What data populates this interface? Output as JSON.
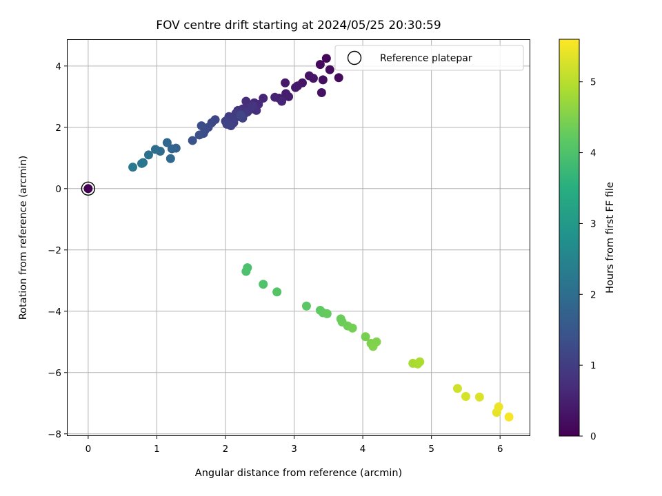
{
  "chart_data": {
    "type": "scatter",
    "title": "FOV centre drift starting at 2024/05/25 20:30:59",
    "xlabel": "Angular distance from reference (arcmin)",
    "ylabel": "Rotation from reference (arcmin)",
    "xlim": [
      -0.3,
      6.43
    ],
    "ylim": [
      -8.05,
      4.85
    ],
    "xticks": [
      0,
      1,
      2,
      3,
      4,
      5,
      6
    ],
    "yticks": [
      -8,
      -6,
      -4,
      -2,
      0,
      2,
      4
    ],
    "xtick_labels": [
      "0",
      "1",
      "2",
      "3",
      "4",
      "5",
      "6"
    ],
    "ytick_labels": [
      "−8",
      "−6",
      "−4",
      "−2",
      "0",
      "2",
      "4"
    ],
    "grid": true,
    "legend_position": "top-right",
    "colormap": "viridis",
    "colorbar": {
      "label": "Hours from first FF file",
      "range": [
        0,
        5.6
      ],
      "ticks": [
        0,
        1,
        2,
        3,
        4,
        5
      ],
      "tick_labels": [
        "0",
        "1",
        "2",
        "3",
        "4",
        "5"
      ]
    },
    "series": [
      {
        "name": "Reference platepar",
        "marker": "hollow-circle",
        "points": [
          [
            0,
            0
          ]
        ]
      },
      {
        "name": "",
        "marker": "filled-circle",
        "points": [
          [
            0,
            0,
            0.0
          ],
          [
            3.47,
            4.25,
            0.08
          ],
          [
            3.38,
            4.05,
            0.12
          ],
          [
            3.52,
            3.88,
            0.16
          ],
          [
            3.65,
            3.62,
            0.18
          ],
          [
            3.42,
            3.55,
            0.22
          ],
          [
            3.4,
            3.13,
            0.25
          ],
          [
            3.22,
            3.68,
            0.28
          ],
          [
            3.28,
            3.6,
            0.3
          ],
          [
            3.12,
            3.45,
            0.33
          ],
          [
            3.05,
            3.35,
            0.36
          ],
          [
            2.87,
            3.45,
            0.38
          ],
          [
            3.02,
            3.3,
            0.4
          ],
          [
            2.88,
            3.1,
            0.43
          ],
          [
            2.92,
            3.0,
            0.46
          ],
          [
            2.78,
            2.95,
            0.5
          ],
          [
            2.72,
            2.98,
            0.55
          ],
          [
            2.82,
            2.85,
            0.58
          ],
          [
            2.55,
            2.95,
            0.6
          ],
          [
            2.42,
            2.8,
            0.63
          ],
          [
            2.48,
            2.75,
            0.66
          ],
          [
            2.38,
            2.6,
            0.7
          ],
          [
            2.3,
            2.85,
            0.72
          ],
          [
            2.45,
            2.55,
            0.75
          ],
          [
            2.35,
            2.65,
            0.78
          ],
          [
            2.25,
            2.6,
            0.8
          ],
          [
            2.4,
            2.7,
            0.83
          ],
          [
            2.32,
            2.5,
            0.86
          ],
          [
            2.18,
            2.55,
            0.88
          ],
          [
            2.2,
            2.35,
            0.9
          ],
          [
            2.28,
            2.45,
            0.93
          ],
          [
            2.15,
            2.45,
            0.95
          ],
          [
            2.1,
            2.25,
            0.98
          ],
          [
            2.05,
            2.35,
            1.0
          ],
          [
            2.12,
            2.15,
            1.03
          ],
          [
            2.0,
            2.2,
            1.05
          ],
          [
            2.25,
            2.3,
            1.08
          ],
          [
            2.08,
            2.05,
            1.1
          ],
          [
            2.02,
            2.1,
            1.12
          ],
          [
            2.22,
            2.4,
            1.15
          ],
          [
            1.85,
            2.25,
            1.18
          ],
          [
            1.8,
            2.15,
            1.2
          ],
          [
            1.75,
            2.0,
            1.23
          ],
          [
            1.7,
            1.9,
            1.26
          ],
          [
            1.65,
            2.05,
            1.3
          ],
          [
            1.68,
            1.8,
            1.33
          ],
          [
            1.62,
            1.75,
            1.36
          ],
          [
            1.52,
            1.57,
            1.4
          ],
          [
            1.28,
            1.32,
            1.75
          ],
          [
            1.22,
            1.3,
            1.8
          ],
          [
            1.15,
            1.5,
            1.85
          ],
          [
            1.2,
            0.98,
            1.9
          ],
          [
            1.05,
            1.22,
            1.95
          ],
          [
            0.98,
            1.28,
            2.0
          ],
          [
            0.88,
            1.1,
            2.05
          ],
          [
            0.8,
            0.85,
            2.15
          ],
          [
            0.78,
            0.82,
            2.2
          ],
          [
            0.65,
            0.7,
            2.25
          ],
          [
            2.32,
            -2.58,
            3.95
          ],
          [
            2.3,
            -2.7,
            3.98
          ],
          [
            2.55,
            -3.12,
            4.02
          ],
          [
            2.75,
            -3.37,
            4.08
          ],
          [
            3.18,
            -3.83,
            4.15
          ],
          [
            3.38,
            -3.97,
            4.2
          ],
          [
            3.42,
            -4.05,
            4.22
          ],
          [
            3.48,
            -4.08,
            4.25
          ],
          [
            3.68,
            -4.25,
            4.3
          ],
          [
            3.7,
            -4.35,
            4.32
          ],
          [
            3.78,
            -4.48,
            4.35
          ],
          [
            3.85,
            -4.55,
            4.38
          ],
          [
            4.04,
            -4.83,
            4.42
          ],
          [
            4.12,
            -5.05,
            4.48
          ],
          [
            4.2,
            -5.0,
            4.5
          ],
          [
            4.15,
            -5.15,
            4.52
          ],
          [
            4.73,
            -5.7,
            4.85
          ],
          [
            4.8,
            -5.72,
            4.88
          ],
          [
            4.83,
            -5.65,
            4.9
          ],
          [
            5.38,
            -6.52,
            5.2
          ],
          [
            5.5,
            -6.78,
            5.25
          ],
          [
            5.7,
            -6.8,
            5.3
          ],
          [
            5.95,
            -7.3,
            5.4
          ],
          [
            5.98,
            -7.12,
            5.45
          ],
          [
            6.13,
            -7.45,
            5.55
          ]
        ]
      }
    ]
  }
}
